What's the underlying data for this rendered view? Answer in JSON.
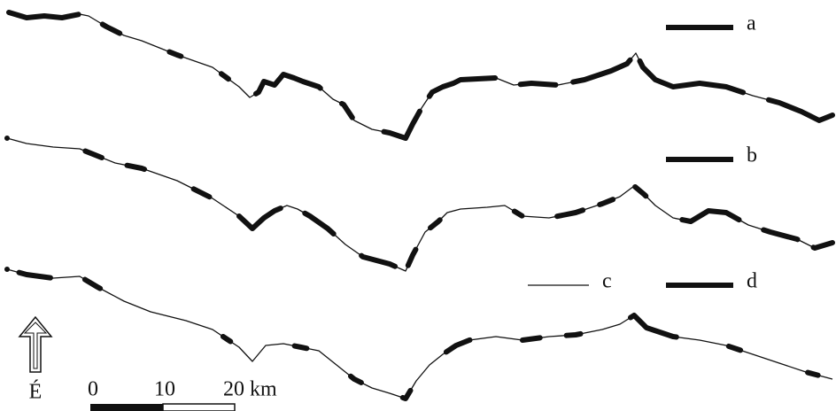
{
  "legend": [
    {
      "label": "a"
    },
    {
      "label": "b"
    },
    {
      "label": "c"
    },
    {
      "label": "d"
    }
  ],
  "north_label": "É",
  "scale": {
    "labels": [
      "0",
      "10",
      "20 km"
    ]
  }
}
